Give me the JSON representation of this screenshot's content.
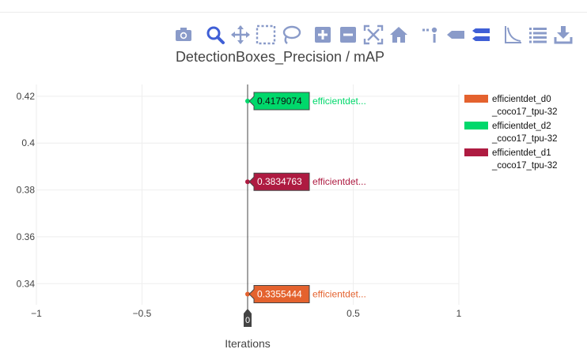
{
  "modebar": {
    "buttons": [
      {
        "name": "camera-icon",
        "label": "Download plot as a png"
      },
      {
        "name": "zoom-icon",
        "label": "Zoom",
        "active": true
      },
      {
        "name": "pan-icon",
        "label": "Pan"
      },
      {
        "name": "box-select-icon",
        "label": "Box Select"
      },
      {
        "name": "lasso-select-icon",
        "label": "Lasso Select"
      },
      {
        "name": "zoom-in-icon",
        "label": "Zoom in"
      },
      {
        "name": "zoom-out-icon",
        "label": "Zoom out"
      },
      {
        "name": "autoscale-icon",
        "label": "Autoscale"
      },
      {
        "name": "reset-axes-icon",
        "label": "Reset axes"
      },
      {
        "name": "spike-lines-icon",
        "label": "Toggle Spike Lines"
      },
      {
        "name": "hover-closest-icon",
        "label": "Show closest data on hover"
      },
      {
        "name": "hover-compare-icon",
        "label": "Compare data on hover",
        "active": true
      },
      {
        "name": "log-scale-icon",
        "label": "Toggle log scale"
      },
      {
        "name": "table-icon",
        "label": "Show data table"
      },
      {
        "name": "download-data-icon",
        "label": "Download data"
      }
    ],
    "icon_color": "#8a9bc9",
    "active_color": "#3f5fd6"
  },
  "chart_data": {
    "type": "scatter",
    "title": "DetectionBoxes_Precision / mAP",
    "xlabel": "Iterations",
    "ylabel": "",
    "xlim": [
      -1,
      1
    ],
    "ylim": [
      0.331,
      0.425
    ],
    "x_ticks": [
      -1,
      -0.5,
      0,
      0.5,
      1
    ],
    "x_tick_labels": [
      "−1",
      "−0.5",
      "0",
      "0.5",
      "1"
    ],
    "y_ticks": [
      0.34,
      0.36,
      0.38,
      0.4,
      0.42
    ],
    "y_tick_labels": [
      "0.34",
      "0.36",
      "0.38",
      "0.4",
      "0.42"
    ],
    "grid": true,
    "legend_position": "right",
    "hover_x": 0,
    "hover_x_label": "0",
    "series": [
      {
        "name": "efficientdet_d0_coco17_tpu-32",
        "legend_lines": [
          "efficientdet_d0",
          "_coco17_tpu-32"
        ],
        "color": "#e4622e",
        "x": [
          0
        ],
        "y": [
          0.3355444
        ],
        "hover_value": "0.3355444",
        "hover_name": "efficientdet..."
      },
      {
        "name": "efficientdet_d2_coco17_tpu-32",
        "legend_lines": [
          "efficientdet_d2",
          "_coco17_tpu-32"
        ],
        "color": "#00d86b",
        "x": [
          0
        ],
        "y": [
          0.4179074
        ],
        "hover_value": "0.4179074",
        "hover_name": "efficientdet..."
      },
      {
        "name": "efficientdet_d1_coco17_tpu-32",
        "legend_lines": [
          "efficientdet_d1",
          "_coco17_tpu-32"
        ],
        "color": "#ae1b41",
        "x": [
          0
        ],
        "y": [
          0.3834763
        ],
        "hover_value": "0.3834763",
        "hover_name": "efficientdet..."
      }
    ]
  }
}
